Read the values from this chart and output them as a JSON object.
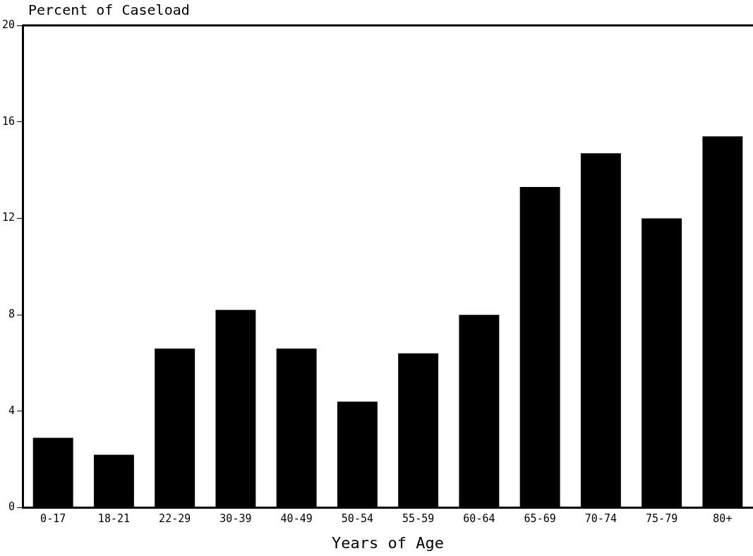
{
  "chart_data": {
    "type": "bar",
    "ylabel": "Percent of Caseload",
    "xlabel": "Years of Age",
    "categories": [
      "0-17",
      "18-21",
      "22-29",
      "30-39",
      "40-49",
      "50-54",
      "55-59",
      "60-64",
      "65-69",
      "70-74",
      "75-79",
      "80+"
    ],
    "values": [
      2.9,
      2.2,
      6.6,
      8.2,
      6.6,
      4.4,
      6.4,
      8.0,
      13.3,
      14.7,
      12.0,
      15.4
    ],
    "color": "#000000",
    "ylim": [
      0,
      20
    ],
    "yticks": [
      0,
      4,
      8,
      12,
      16,
      20
    ],
    "grid": false,
    "legend": false
  }
}
